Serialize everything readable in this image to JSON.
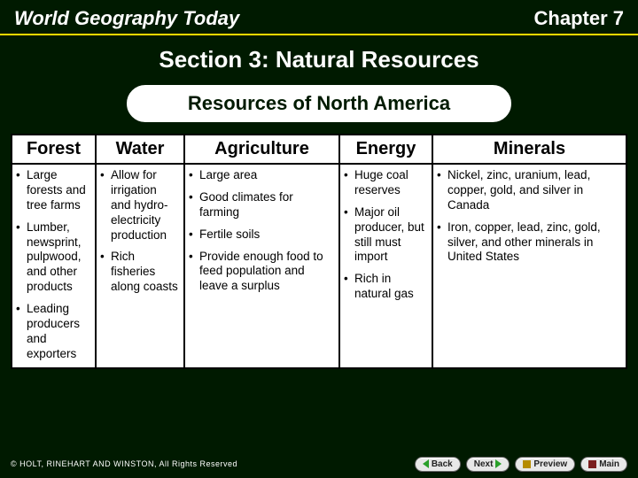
{
  "header": {
    "book_title": "World Geography Today",
    "chapter": "Chapter 7"
  },
  "section_title": "Section 3: Natural Resources",
  "pill_title": "Resources of North America",
  "table": {
    "col_widths": [
      "95px",
      "100px",
      "175px",
      "105px",
      "auto"
    ],
    "columns": [
      {
        "header": "Forest",
        "items": [
          "Large forests and tree farms",
          "Lumber, newsprint, pulpwood, and other products",
          "Leading producers and exporters"
        ]
      },
      {
        "header": "Water",
        "items": [
          "Allow for irrigation and hydro-electricity production",
          "Rich fisheries along coasts"
        ]
      },
      {
        "header": "Agriculture",
        "items": [
          "Large area",
          "Good climates for farming",
          "Fertile soils",
          "Provide enough food to feed population and leave a surplus"
        ]
      },
      {
        "header": "Energy",
        "items": [
          "Huge coal reserves",
          "Major oil producer, but still must import",
          "Rich in natural gas"
        ]
      },
      {
        "header": "Minerals",
        "items": [
          "Nickel, zinc, uranium, lead, copper, gold, and silver in Canada",
          "Iron, copper, lead, zinc, gold, silver, and other minerals in United States"
        ]
      }
    ]
  },
  "nav": {
    "back": "Back",
    "next": "Next",
    "preview": "Preview",
    "main": "Main"
  },
  "copyright": "© HOLT, RINEHART AND WINSTON, All Rights Reserved",
  "colors": {
    "background": "#001a00",
    "accent_rule": "#ffd800",
    "text_light": "#ffffff",
    "border": "#000000",
    "nav_arrow": "#2aa02a"
  }
}
